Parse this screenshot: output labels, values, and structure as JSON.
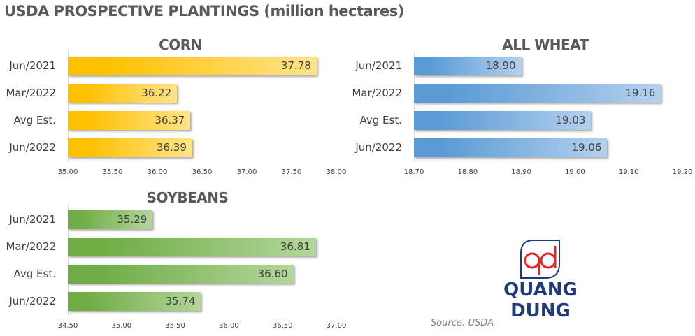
{
  "title": "USDA PROSPECTIVE PLANTINGS (million hectares)",
  "source": "Source: USDA",
  "logo": {
    "text": "QUANG DUNG",
    "mark": "qd"
  },
  "chart_data": [
    {
      "type": "bar",
      "orientation": "horizontal",
      "title": "CORN",
      "categories": [
        "Jun/2021",
        "Mar/2022",
        "Avg Est.",
        "Jun/2022"
      ],
      "values": [
        37.78,
        36.22,
        36.37,
        36.39
      ],
      "value_labels": [
        "37.78",
        "36.22",
        "36.37",
        "36.39"
      ],
      "xlim": [
        35.0,
        38.0
      ],
      "ticks": [
        "35.00",
        "35.50",
        "36.00",
        "36.50",
        "37.00",
        "37.50",
        "38.00"
      ],
      "color": "#ffc000",
      "color_light": "#ffe48a"
    },
    {
      "type": "bar",
      "orientation": "horizontal",
      "title": "ALL WHEAT",
      "categories": [
        "Jun/2021",
        "Mar/2022",
        "Avg Est.",
        "Jun/2022"
      ],
      "values": [
        18.9,
        19.16,
        19.03,
        19.06
      ],
      "value_labels": [
        "18.90",
        "19.16",
        "19.03",
        "19.06"
      ],
      "xlim": [
        18.7,
        19.2
      ],
      "ticks": [
        "18.70",
        "18.80",
        "18.90",
        "19.00",
        "19.10",
        "19.20"
      ],
      "color": "#5b9bd5",
      "color_light": "#b4d0ee"
    },
    {
      "type": "bar",
      "orientation": "horizontal",
      "title": "SOYBEANS",
      "categories": [
        "Jun/2021",
        "Mar/2022",
        "Avg Est.",
        "Jun/2022"
      ],
      "values": [
        35.29,
        36.81,
        36.6,
        35.74
      ],
      "value_labels": [
        "35.29",
        "36.81",
        "36.60",
        "35.74"
      ],
      "xlim": [
        34.5,
        37.0
      ],
      "ticks": [
        "34.50",
        "35.00",
        "35.50",
        "36.00",
        "36.50",
        "37.00"
      ],
      "color": "#70ad47",
      "color_light": "#b3d69b"
    }
  ]
}
